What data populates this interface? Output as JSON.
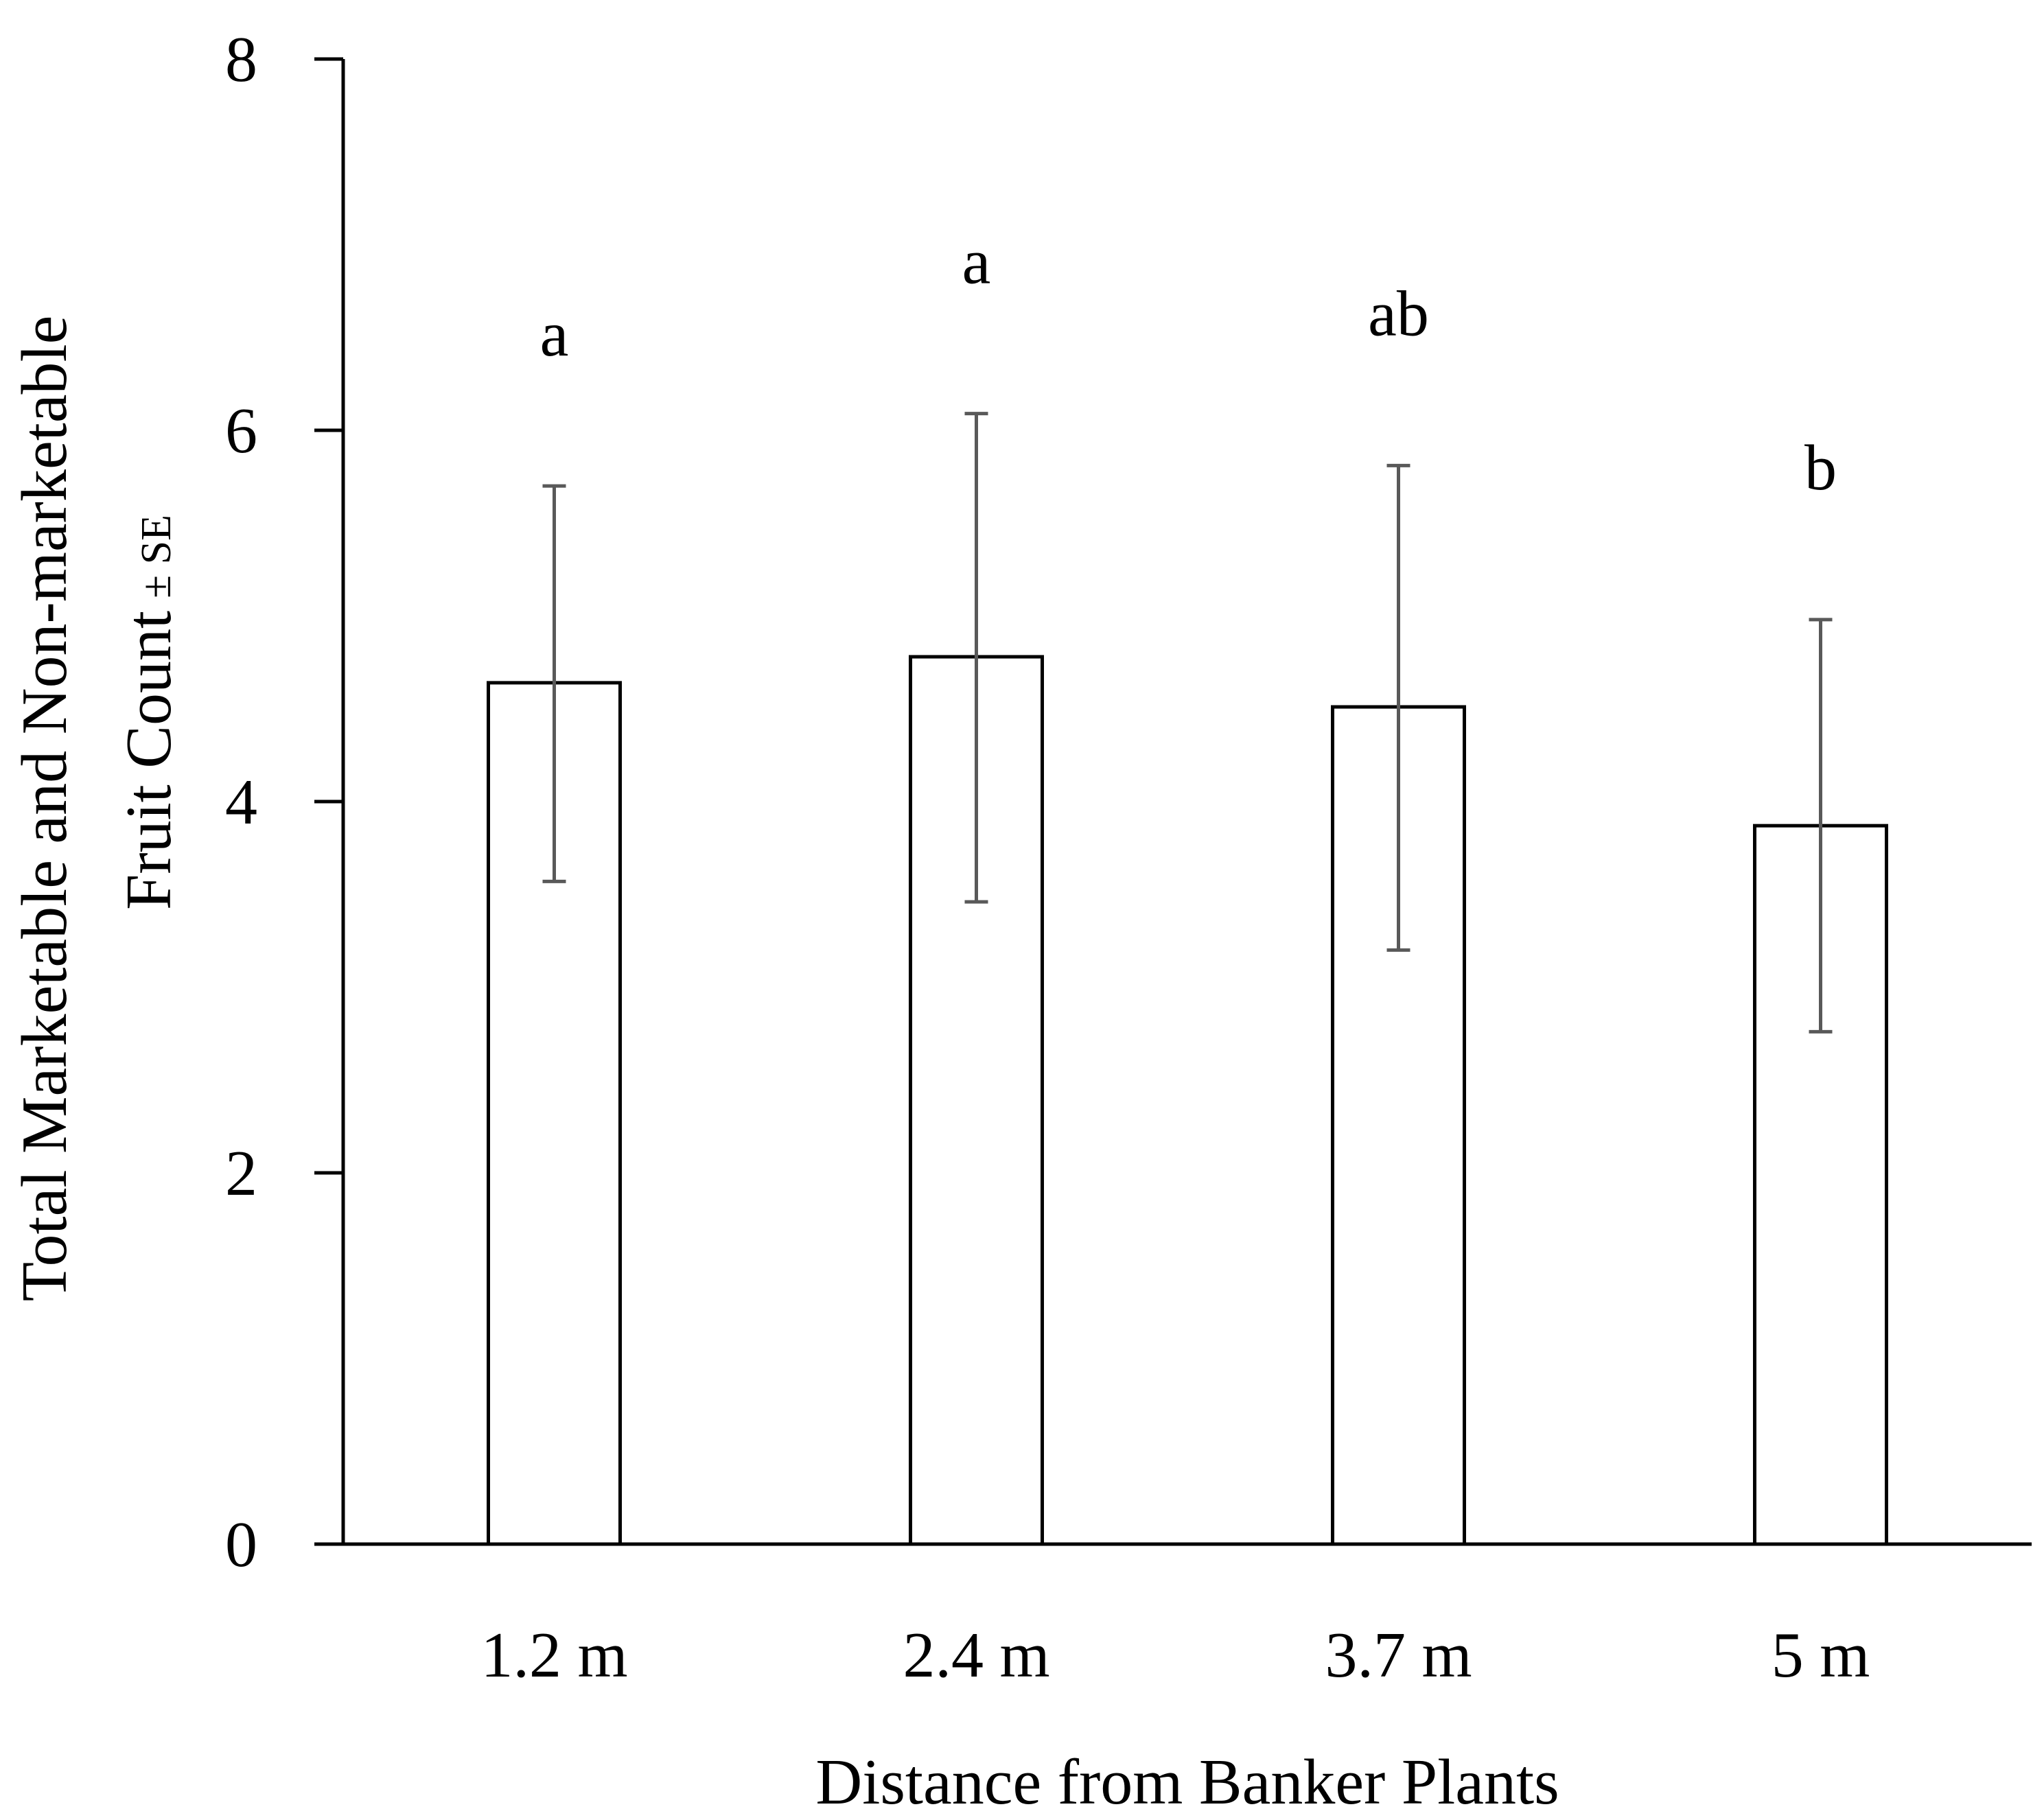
{
  "chart_data": {
    "type": "bar",
    "categories": [
      "1.2 m",
      "2.4 m",
      "3.7 m",
      "5 m"
    ],
    "values": [
      4.64,
      4.78,
      4.51,
      3.87
    ],
    "errors_lower": [
      3.57,
      3.46,
      3.2,
      2.76
    ],
    "errors_upper": [
      5.7,
      6.09,
      5.81,
      4.98
    ],
    "significance_letters": [
      "a",
      "a",
      "ab",
      "b"
    ],
    "xlabel": "Distance from Banker Plants",
    "ylabel_line1": "Total Marketable and Non-marketable",
    "ylabel_line2_main": "Fruit Count",
    "ylabel_line2_suffix": "± SE",
    "ylim": [
      0,
      8
    ],
    "yticks": [
      "0",
      "2",
      "4",
      "6",
      "8"
    ],
    "grid": false,
    "colors": {
      "bar_fill": "#ffffff",
      "bar_stroke": "#000000",
      "error_bar": "#595959",
      "axis": "#000000"
    }
  }
}
